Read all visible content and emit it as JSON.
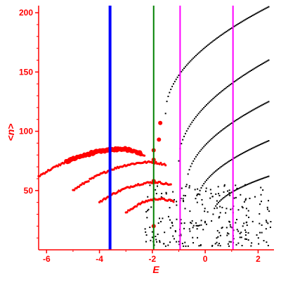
{
  "chart_data": {
    "type": "scatter",
    "xlabel": "E",
    "ylabel": "<n>",
    "xlim": [
      -6.3,
      2.6
    ],
    "ylim": [
      0,
      206
    ],
    "x_ticks": [
      -6,
      -4,
      -2,
      0,
      2
    ],
    "x_tick_labels": [
      "-6",
      "-4",
      "-2",
      "0",
      "2"
    ],
    "y_ticks": [
      50,
      100,
      150,
      200
    ],
    "y_tick_labels": [
      "50",
      "100",
      "150",
      "200"
    ],
    "grid": false,
    "colors": {
      "axis": "#ff0000",
      "red_points": "#ff0000",
      "black_points": "#000000",
      "blue_line": "#0000ff",
      "green_line": "#008000",
      "magenta_line": "#ff00ff"
    },
    "vertical_lines": [
      {
        "x": -3.6,
        "color": "#0000ff"
      },
      {
        "x": -1.95,
        "color": "#008000"
      },
      {
        "x": -0.95,
        "color": "#ff00ff"
      },
      {
        "x": 1.05,
        "color": "#ff00ff"
      }
    ],
    "red_bands": [
      {
        "x0": -6.3,
        "x1": -2.3,
        "y0": 62,
        "ypeak": 85,
        "xpeak": -3.0,
        "y1": 80
      },
      {
        "x0": -5.0,
        "x1": -1.5,
        "y0": 50,
        "ypeak": 74,
        "xpeak": -2.0,
        "y1": 72
      },
      {
        "x0": -4.0,
        "x1": -1.3,
        "y0": 40,
        "ypeak": 57,
        "xpeak": -1.8,
        "y1": 55
      },
      {
        "x0": -3.0,
        "x1": -1.2,
        "y0": 31,
        "ypeak": 43,
        "xpeak": -1.7,
        "y1": 41
      }
    ],
    "red_markers": [
      {
        "x": -1.95,
        "y": 84
      },
      {
        "x": -1.95,
        "y": 76
      },
      {
        "x": -1.95,
        "y": 58
      },
      {
        "x": -1.95,
        "y": 20
      },
      {
        "x": -1.7,
        "y": 107
      },
      {
        "x": -1.75,
        "y": 93
      }
    ],
    "black_curves": [
      {
        "x0": -1.5,
        "x1": 2.4,
        "y0": 115,
        "y1": 205
      },
      {
        "x0": -1.0,
        "x1": 2.4,
        "y0": 75,
        "y1": 160
      },
      {
        "x0": -0.7,
        "x1": 2.4,
        "y0": 55,
        "y1": 125
      },
      {
        "x0": -0.3,
        "x1": 2.4,
        "y0": 40,
        "y1": 92
      },
      {
        "x0": 0.3,
        "x1": 2.4,
        "y0": 30,
        "y1": 62
      }
    ],
    "black_scatter_region": {
      "x0": -2.3,
      "x1": 2.5,
      "y0": 3,
      "y1": 55
    }
  }
}
